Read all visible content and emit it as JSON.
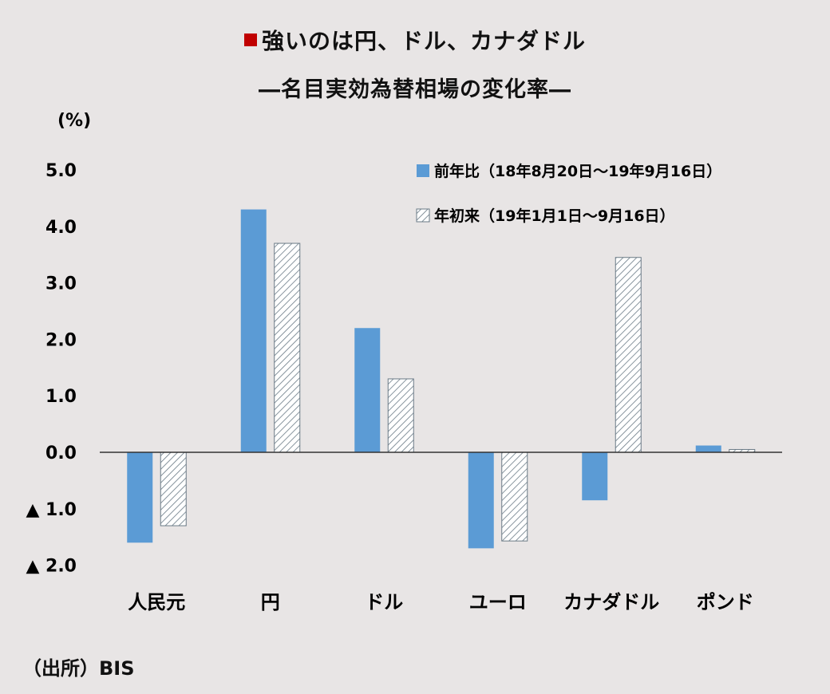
{
  "title": {
    "marker_color": "#c00000",
    "line1": "強いのは円、ドル、カナダドル",
    "line2": "―名目実効為替相場の変化率―"
  },
  "source": "（出所）BIS",
  "chart_data": {
    "type": "bar",
    "unit_label": "(%)",
    "categories": [
      "人民元",
      "円",
      "ドル",
      "ユーロ",
      "カナダドル",
      "ポンド"
    ],
    "series": [
      {
        "name": "前年比（18年8月20日～19年9月16日）",
        "values": [
          -1.6,
          4.3,
          2.2,
          -1.7,
          -0.85,
          0.12
        ],
        "color": "#5b9bd5",
        "pattern": "solid"
      },
      {
        "name": "年初来（19年1月1日～9月16日）",
        "values": [
          -1.3,
          3.7,
          1.3,
          -1.57,
          3.45,
          0.05
        ],
        "color": "#ffffff",
        "pattern": "diagonal-hatch"
      }
    ],
    "ylim": [
      -2.0,
      5.0
    ],
    "yticks": [
      5.0,
      4.0,
      3.0,
      2.0,
      1.0,
      0.0,
      -1.0,
      -2.0
    ],
    "ytick_labels": [
      "5.0",
      "4.0",
      "3.0",
      "2.0",
      "1.0",
      "0.0",
      "▲ 1.0",
      "▲ 2.0"
    ],
    "grid": false,
    "legend_position": "top-right"
  }
}
